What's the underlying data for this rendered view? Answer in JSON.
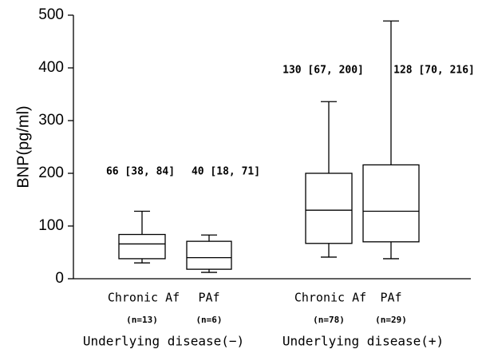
{
  "chart_data": {
    "type": "box",
    "y_label": "BNP(pg/ml)",
    "categories": [
      "Chronic Af",
      "PAf",
      "Chronic Af",
      "PAf"
    ],
    "n_labels": [
      "(n=13)",
      "(n=6)",
      "(n=78)",
      "(n=29)"
    ],
    "groups": [
      "Underlying disease(−)",
      "Underlying disease(+)"
    ],
    "annotations": [
      "66 [38, 84]",
      "40 [18, 71]",
      "130 [67, 200]",
      "128 [70, 216]"
    ],
    "boxes": [
      {
        "min": 30,
        "q1": 38,
        "median": 66,
        "q3": 84,
        "max": 128
      },
      {
        "min": 12,
        "q1": 18,
        "median": 40,
        "q3": 71,
        "max": 83
      },
      {
        "min": 41,
        "q1": 67,
        "median": 130,
        "q3": 200,
        "max": 336
      },
      {
        "min": 38,
        "q1": 70,
        "median": 128,
        "q3": 216,
        "max": 489
      }
    ],
    "ylim": [
      0,
      500
    ],
    "yticks": [
      0,
      100,
      200,
      300,
      400,
      500
    ]
  }
}
